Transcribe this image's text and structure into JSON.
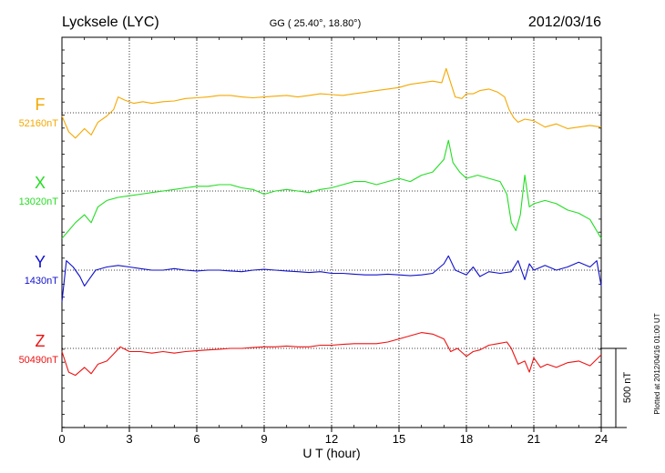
{
  "header": {
    "station": "Lycksele (LYC)",
    "coords": "GG ( 25.40°,  18.80°)",
    "date": "2012/03/16"
  },
  "side_note": "Plotted at 2012/04/16 01:00 UT",
  "scale_label": "500 nT",
  "chart_data": {
    "type": "line",
    "xlabel": "U T (hour)",
    "xlim": [
      0,
      24
    ],
    "xticks": [
      0,
      3,
      6,
      9,
      12,
      15,
      18,
      21,
      24
    ],
    "grid": true,
    "unit": "nT",
    "scale_bar_nT": 500,
    "series": [
      {
        "name": "F",
        "baseline_label": "52160nT",
        "baseline": 52160,
        "color": "#f5a800",
        "x": [
          0,
          0.3,
          0.6,
          1.0,
          1.3,
          1.6,
          2.0,
          2.3,
          2.5,
          2.8,
          3.2,
          3.6,
          4.0,
          4.5,
          5.0,
          5.5,
          6.0,
          6.5,
          7.0,
          7.5,
          8.0,
          8.5,
          9.0,
          9.5,
          10.0,
          10.5,
          11.0,
          11.5,
          12.0,
          12.5,
          13.0,
          13.5,
          14.0,
          14.5,
          15.0,
          15.5,
          16.0,
          16.5,
          16.9,
          17.1,
          17.3,
          17.5,
          17.8,
          18.0,
          18.3,
          18.6,
          19.0,
          19.4,
          19.7,
          19.9,
          20.1,
          20.3,
          20.6,
          21.0,
          21.5,
          22.0,
          22.5,
          23.0,
          23.5,
          24.0
        ],
        "values": [
          -20,
          -120,
          -160,
          -100,
          -140,
          -60,
          -20,
          20,
          100,
          80,
          60,
          70,
          60,
          70,
          75,
          90,
          95,
          100,
          110,
          110,
          100,
          95,
          100,
          105,
          110,
          100,
          110,
          120,
          115,
          110,
          120,
          130,
          140,
          150,
          160,
          180,
          190,
          200,
          190,
          280,
          190,
          100,
          90,
          120,
          120,
          140,
          150,
          130,
          100,
          20,
          -30,
          -60,
          -40,
          -50,
          -90,
          -70,
          -100,
          -90,
          -80,
          -90
        ]
      },
      {
        "name": "X",
        "baseline_label": "13020nT",
        "baseline": 13020,
        "color": "#22dd22",
        "x": [
          0,
          0.3,
          0.6,
          1.0,
          1.3,
          1.6,
          2.0,
          2.5,
          3.0,
          3.5,
          4.0,
          4.5,
          5.0,
          5.5,
          6.0,
          6.5,
          7.0,
          7.5,
          8.0,
          8.5,
          9.0,
          9.5,
          10.0,
          10.5,
          11.0,
          11.5,
          12.0,
          12.5,
          13.0,
          13.5,
          14.0,
          14.5,
          15.0,
          15.5,
          16.0,
          16.5,
          17.0,
          17.2,
          17.4,
          17.7,
          18.0,
          18.5,
          19.0,
          19.5,
          19.8,
          20.0,
          20.2,
          20.4,
          20.6,
          20.8,
          21.0,
          21.5,
          22.0,
          22.5,
          23.0,
          23.5,
          24.0
        ],
        "values": [
          -300,
          -250,
          -200,
          -150,
          -200,
          -100,
          -60,
          -40,
          -30,
          -20,
          -10,
          0,
          10,
          20,
          30,
          30,
          40,
          40,
          20,
          10,
          -20,
          0,
          10,
          0,
          -10,
          10,
          20,
          40,
          60,
          60,
          40,
          60,
          80,
          60,
          100,
          120,
          200,
          320,
          180,
          120,
          80,
          100,
          80,
          60,
          -20,
          -200,
          -250,
          -150,
          100,
          -100,
          -80,
          -60,
          -80,
          -120,
          -140,
          -180,
          -300
        ]
      },
      {
        "name": "Y",
        "baseline_label": "1430nT",
        "baseline": 1430,
        "color": "#1010cc",
        "x": [
          0,
          0.2,
          0.5,
          0.8,
          1.0,
          1.2,
          1.5,
          2.0,
          2.5,
          3.0,
          3.5,
          4.0,
          4.5,
          5.0,
          5.5,
          6.0,
          6.5,
          7.0,
          7.5,
          8.0,
          8.5,
          9.0,
          9.5,
          10.0,
          10.5,
          11.0,
          11.5,
          12.0,
          12.5,
          13.0,
          13.5,
          14.0,
          14.5,
          15.0,
          15.5,
          16.0,
          16.5,
          17.0,
          17.2,
          17.5,
          18.0,
          18.3,
          18.6,
          19.0,
          19.5,
          20.0,
          20.3,
          20.6,
          20.8,
          21.0,
          21.5,
          22.0,
          22.5,
          23.0,
          23.5,
          23.8,
          24.0
        ],
        "values": [
          -200,
          60,
          20,
          -40,
          -100,
          -60,
          0,
          20,
          30,
          20,
          10,
          0,
          0,
          10,
          0,
          -5,
          0,
          0,
          -5,
          -10,
          0,
          5,
          0,
          -5,
          -10,
          -15,
          -10,
          -20,
          -20,
          -25,
          -30,
          -30,
          -25,
          -30,
          -35,
          -30,
          -20,
          40,
          90,
          0,
          -30,
          20,
          -40,
          -10,
          -20,
          -10,
          60,
          -60,
          40,
          0,
          30,
          0,
          20,
          50,
          20,
          60,
          -100
        ]
      },
      {
        "name": "Z",
        "baseline_label": "50490nT",
        "baseline": 50490,
        "color": "#ee1111",
        "x": [
          0,
          0.3,
          0.6,
          1.0,
          1.3,
          1.6,
          2.0,
          2.4,
          2.6,
          3.0,
          3.5,
          4.0,
          4.5,
          5.0,
          5.5,
          6.0,
          6.5,
          7.0,
          7.5,
          8.0,
          8.5,
          9.0,
          9.5,
          10.0,
          10.5,
          11.0,
          11.5,
          12.0,
          12.5,
          13.0,
          13.5,
          14.0,
          14.5,
          15.0,
          15.5,
          16.0,
          16.5,
          17.0,
          17.3,
          17.6,
          18.0,
          18.3,
          18.6,
          19.0,
          19.4,
          19.8,
          20.0,
          20.3,
          20.6,
          20.8,
          21.0,
          21.3,
          21.6,
          22.0,
          22.5,
          23.0,
          23.5,
          24.0
        ],
        "values": [
          -20,
          -150,
          -170,
          -120,
          -160,
          -100,
          -80,
          -20,
          10,
          -20,
          -20,
          -30,
          -20,
          -30,
          -20,
          -15,
          -10,
          -5,
          0,
          0,
          5,
          10,
          10,
          15,
          10,
          10,
          20,
          20,
          25,
          30,
          30,
          30,
          40,
          60,
          80,
          100,
          90,
          60,
          -20,
          0,
          -50,
          -20,
          -10,
          20,
          30,
          40,
          0,
          -100,
          -80,
          -150,
          -60,
          -120,
          -100,
          -120,
          -90,
          -80,
          -110,
          -40
        ]
      }
    ]
  }
}
